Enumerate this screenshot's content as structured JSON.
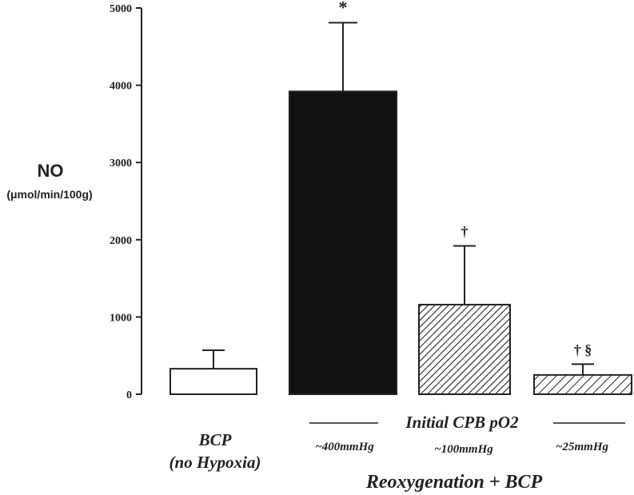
{
  "chart_data": {
    "type": "bar",
    "ylabel": "NO",
    "ylabel_unit": "(μmol/min/100g)",
    "ylim": [
      0,
      5000
    ],
    "yticks": [
      "0",
      "1000",
      "2000",
      "3000",
      "4000",
      "5000"
    ],
    "categories": [
      "BCP (no Hypoxia)",
      "~400mmHg",
      "~100mmHg",
      "~25mmHg"
    ],
    "values": [
      330,
      3920,
      1160,
      250
    ],
    "errors": [
      240,
      890,
      760,
      140
    ],
    "markers": [
      "",
      "*",
      "†",
      "† §"
    ],
    "bar_fills": [
      "white",
      "solid-black",
      "dense-hatch",
      "sparse-hatch"
    ],
    "colors": {
      "black": "#111111",
      "white": "#ffffff"
    },
    "annotations": {
      "bcp_line1": "BCP",
      "bcp_line2": "(no Hypoxia)",
      "group_header": "Initial CPB pO2",
      "sub_labels": [
        "~400mmHg",
        "~100mmHg",
        "~25mmHg"
      ],
      "group_footer": "Reoxygenation + BCP"
    }
  }
}
